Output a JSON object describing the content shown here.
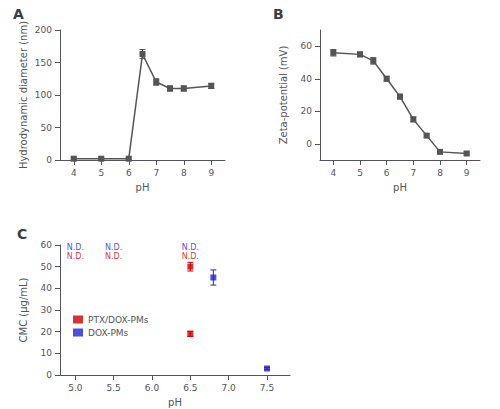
{
  "chart_data": [
    {
      "type": "line",
      "title": "A",
      "xlabel": "pH",
      "ylabel": "Hydrodynamic diameter (nm)",
      "xlim": [
        3.5,
        9.5
      ],
      "ylim": [
        0,
        200
      ],
      "xticks": [
        4,
        5,
        6,
        7,
        8,
        9
      ],
      "yticks": [
        0,
        50,
        100,
        150,
        200
      ],
      "grid": false,
      "x": [
        4,
        5,
        6,
        6.5,
        7,
        7.5,
        8,
        9
      ],
      "series": [
        {
          "color": "#555555",
          "marker": "square",
          "values": [
            2,
            2,
            2,
            163,
            120,
            110,
            110,
            114
          ],
          "errors": [
            1,
            1,
            1,
            7,
            5,
            4,
            4,
            4
          ]
        }
      ]
    },
    {
      "type": "line",
      "title": "B",
      "xlabel": "pH",
      "ylabel": "Zeta-potential (mV)",
      "xlim": [
        3.5,
        9.5
      ],
      "ylim": [
        -10,
        70
      ],
      "xticks": [
        4,
        5,
        6,
        7,
        8,
        9
      ],
      "yticks": [
        0,
        20,
        40,
        60
      ],
      "grid": false,
      "x": [
        4,
        5,
        5.5,
        6,
        6.5,
        7,
        7.5,
        8,
        9
      ],
      "series": [
        {
          "color": "#555555",
          "marker": "square",
          "values": [
            56,
            55,
            51,
            40,
            29,
            15,
            5,
            -5,
            -6
          ],
          "errors": [
            2,
            1.5,
            2,
            1.5,
            1.5,
            1.5,
            1,
            1,
            1
          ]
        }
      ]
    },
    {
      "type": "scatter",
      "title": "C",
      "xlabel": "pH",
      "ylabel": "CMC (μg/mL)",
      "xlim": [
        4.8,
        7.8
      ],
      "ylim": [
        0,
        60
      ],
      "xticks": [
        {
          "value": 5.0,
          "label": "5.0"
        },
        5.5,
        {
          "value": 6.0,
          "label": "6.0"
        },
        6.5,
        {
          "value": 7.0,
          "label": "7.0"
        },
        7.5
      ],
      "yticks": [
        0,
        10,
        20,
        30,
        40,
        50,
        60
      ],
      "grid": false,
      "legend": "lower left",
      "series": [
        {
          "name": "PTX/DOX-PMs",
          "color": "#cc0000",
          "marker": "square",
          "x": [
            6.5,
            6.5
          ],
          "values": [
            50,
            19
          ],
          "errors": [
            2.0,
            1.2
          ]
        },
        {
          "name": "DOX-PMs",
          "color": "#2222cc",
          "marker": "square",
          "x": [
            6.8,
            7.5
          ],
          "values": [
            45,
            3
          ],
          "errors": [
            3.5,
            0.5
          ]
        }
      ],
      "annotations": [
        {
          "text": "N.D.",
          "x": 5.0,
          "y": 57,
          "color": "#2222cc"
        },
        {
          "text": "N.D.",
          "x": 5.5,
          "y": 57,
          "color": "#2222cc"
        },
        {
          "text": "N.D.",
          "x": 6.5,
          "y": 57,
          "color": "#2222cc"
        },
        {
          "text": "N.D.",
          "x": 5.0,
          "y": 53,
          "color": "#cc0000"
        },
        {
          "text": "N.D.",
          "x": 5.5,
          "y": 53,
          "color": "#cc0000"
        },
        {
          "text": "N.D.",
          "x": 6.5,
          "y": 53,
          "color": "#cc0000"
        }
      ]
    }
  ]
}
